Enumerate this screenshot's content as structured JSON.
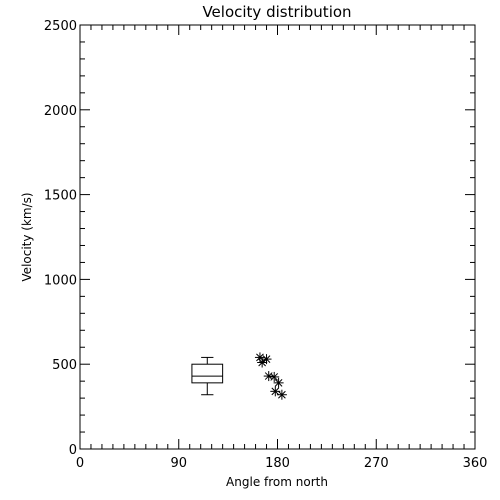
{
  "chart_data": {
    "type": "scatter",
    "title": "Velocity distribution",
    "xlabel": "Angle from north",
    "ylabel": "Velocity (km/s)",
    "xlim": [
      0,
      360
    ],
    "ylim": [
      0,
      2500
    ],
    "xticks": [
      0,
      90,
      180,
      270,
      360
    ],
    "xtick_labels": [
      "0",
      "90",
      "180",
      "270",
      "360"
    ],
    "yticks": [
      0,
      500,
      1000,
      1500,
      2000,
      2500
    ],
    "ytick_labels": [
      "0",
      "500",
      "1000",
      "1500",
      "2000",
      "2500"
    ],
    "x_minor_step": 10,
    "y_minor_step": 100,
    "grid": false,
    "boxplot": {
      "x_left": 102,
      "x_right": 130,
      "whisker_low": 320,
      "q1": 390,
      "median": 430,
      "q3": 500,
      "whisker_high": 540
    },
    "points": [
      {
        "x": 164,
        "y": 540
      },
      {
        "x": 170,
        "y": 530
      },
      {
        "x": 166,
        "y": 510
      },
      {
        "x": 172,
        "y": 430
      },
      {
        "x": 177,
        "y": 425
      },
      {
        "x": 181,
        "y": 390
      },
      {
        "x": 178,
        "y": 340
      },
      {
        "x": 184,
        "y": 320
      }
    ],
    "marker": "asterisk"
  }
}
